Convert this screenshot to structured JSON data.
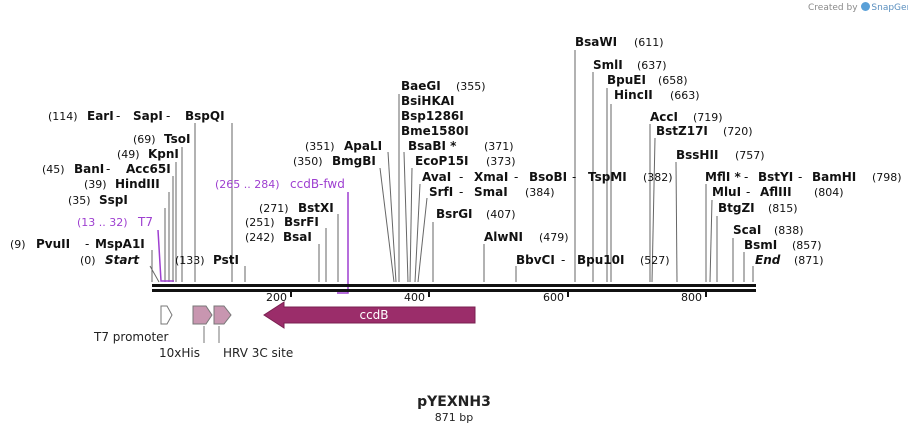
{
  "credit": {
    "created_by": "Created by",
    "brand": "SnapGene"
  },
  "plasmid": {
    "name": "pYEXNH3",
    "length_label": "871 bp"
  },
  "ruler": {
    "ticks": [
      "200",
      "400",
      "600",
      "800"
    ]
  },
  "sites": [
    {
      "enzyme": "PvuII",
      "pos": "(9)",
      "enzyme2": "MspA1I"
    },
    {
      "enzyme": "Start",
      "pos": "(0)",
      "italic": true
    },
    {
      "enzyme": "T7",
      "pos": "(13 .. 32)",
      "primer": true
    },
    {
      "enzyme": "SspI",
      "pos": "(35)"
    },
    {
      "enzyme": "HindIII",
      "pos": "(39)"
    },
    {
      "enzyme": "BanI",
      "pos": "(45)",
      "enzyme2": "Acc65I"
    },
    {
      "enzyme": "KpnI",
      "pos": "(49)"
    },
    {
      "enzyme": "TsoI",
      "pos": "(69)"
    },
    {
      "enzyme": "EarI",
      "pos": "(114)",
      "enzyme2": "SapI",
      "enzyme3": "BspQI"
    },
    {
      "enzyme": "PstI",
      "pos": "(133)"
    },
    {
      "enzyme": "BsaI",
      "pos": "(242)"
    },
    {
      "enzyme": "BsrFI",
      "pos": "(251)"
    },
    {
      "enzyme": "BstXI",
      "pos": "(271)"
    },
    {
      "enzyme": "ccdB-fwd",
      "pos": "(265 .. 284)",
      "primer": true
    },
    {
      "enzyme": "BmgBI",
      "pos": "(350)"
    },
    {
      "enzyme": "ApaLI",
      "pos": "(351)"
    },
    {
      "enzyme": "BaeGI",
      "pos": "(355)"
    },
    {
      "enzyme": "BsiHKAI",
      "pos": ""
    },
    {
      "enzyme": "Bsp1286I",
      "pos": ""
    },
    {
      "enzyme": "Bme1580I",
      "pos": ""
    },
    {
      "enzyme": "BsaBI *",
      "pos": "(371)"
    },
    {
      "enzyme": "EcoP15I",
      "pos": "(373)"
    },
    {
      "enzyme": "AvaI",
      "pos": "",
      "enzyme2": "XmaI",
      "enzyme3": "BsoBI",
      "enzyme4": "TspMI",
      "pos_right": "(382)"
    },
    {
      "enzyme": "SrfI",
      "pos": "",
      "enzyme2": "SmaI",
      "pos_right": "(384)"
    },
    {
      "enzyme": "BsrGI",
      "pos": "(407)"
    },
    {
      "enzyme": "AlwNI",
      "pos": "(479)"
    },
    {
      "enzyme": "BbvCI",
      "pos": "",
      "enzyme2": "Bpu10I",
      "pos_right": "(527)"
    },
    {
      "enzyme": "BsaWI",
      "pos": "(611)"
    },
    {
      "enzyme": "SmlI",
      "pos": "(637)"
    },
    {
      "enzyme": "BpuEI",
      "pos": "(658)"
    },
    {
      "enzyme": "HincII",
      "pos": "(663)"
    },
    {
      "enzyme": "AccI",
      "pos": "(719)"
    },
    {
      "enzyme": "BstZ17I",
      "pos": "(720)"
    },
    {
      "enzyme": "BssHII",
      "pos": "(757)"
    },
    {
      "enzyme": "MflI *",
      "pos": "",
      "enzyme2": "BstYI",
      "enzyme3": "BamHI",
      "pos_right": "(798)"
    },
    {
      "enzyme": "MluI",
      "pos": "",
      "enzyme2": "AflIII",
      "pos_right": "(804)"
    },
    {
      "enzyme": "BtgZI",
      "pos": "(815)"
    },
    {
      "enzyme": "ScaI",
      "pos": "(838)"
    },
    {
      "enzyme": "BsmI",
      "pos": "(857)"
    },
    {
      "enzyme": "End",
      "pos": "(871)",
      "italic": true
    }
  ],
  "features": [
    {
      "name": "T7 promoter",
      "color": "#ffffff"
    },
    {
      "name": "10xHis",
      "color": "#c896b0"
    },
    {
      "name": "HRV 3C site",
      "color": "#c896b0"
    },
    {
      "name": "ccdB",
      "color": "#9b2d6a"
    }
  ],
  "colors": {
    "primer": "#9e3fd0",
    "text": "#111111",
    "line": "#666666",
    "backbone": "#111111"
  }
}
